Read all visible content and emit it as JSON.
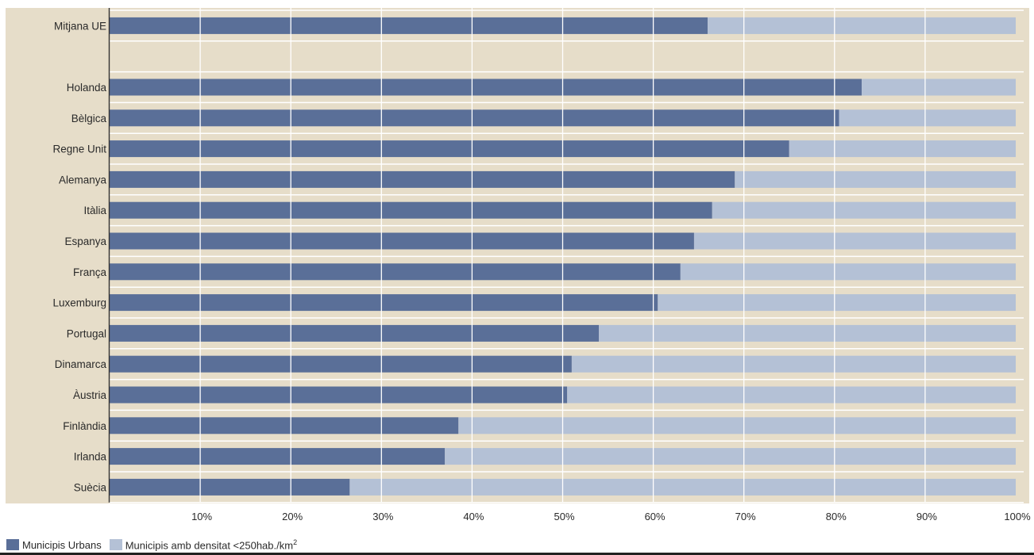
{
  "chart_data": {
    "type": "bar",
    "orientation": "horizontal",
    "stacked": true,
    "categories": [
      "Mitjana UE",
      "",
      "Holanda",
      "Bèlgica",
      "Regne Unit",
      "Alemanya",
      "Itàlia",
      "Espanya",
      "França",
      "Luxemburg",
      "Portugal",
      "Dinamarca",
      "Àustria",
      "Finlàndia",
      "Irlanda",
      "Suècia"
    ],
    "series": [
      {
        "name": "Municipis Urbans",
        "color": "#5a6f98",
        "values": [
          66,
          null,
          83,
          80.5,
          75,
          69,
          66.5,
          64.5,
          63,
          60.5,
          54,
          51,
          50.5,
          38.5,
          37,
          26.5
        ]
      },
      {
        "name": "Municipis amb densitat <250hab./km²",
        "color": "#b4c1d6",
        "values": [
          34,
          null,
          17,
          19.5,
          25,
          31,
          33.5,
          35.5,
          37,
          39.5,
          46,
          49,
          49.5,
          61.5,
          63,
          73.5
        ]
      }
    ],
    "xlim": [
      0,
      100
    ],
    "x_ticks": [
      "10%",
      "20%",
      "30%",
      "40%",
      "50%",
      "60%",
      "70%",
      "80%",
      "90%",
      "100%"
    ],
    "grid": true,
    "legend": "bottom-left"
  },
  "legend": {
    "items": [
      {
        "label": "Municipis Urbans",
        "color": "#5a6f98"
      },
      {
        "label": "Municipis amb densitat <250hab./km²",
        "color": "#b4c1d6"
      }
    ]
  }
}
